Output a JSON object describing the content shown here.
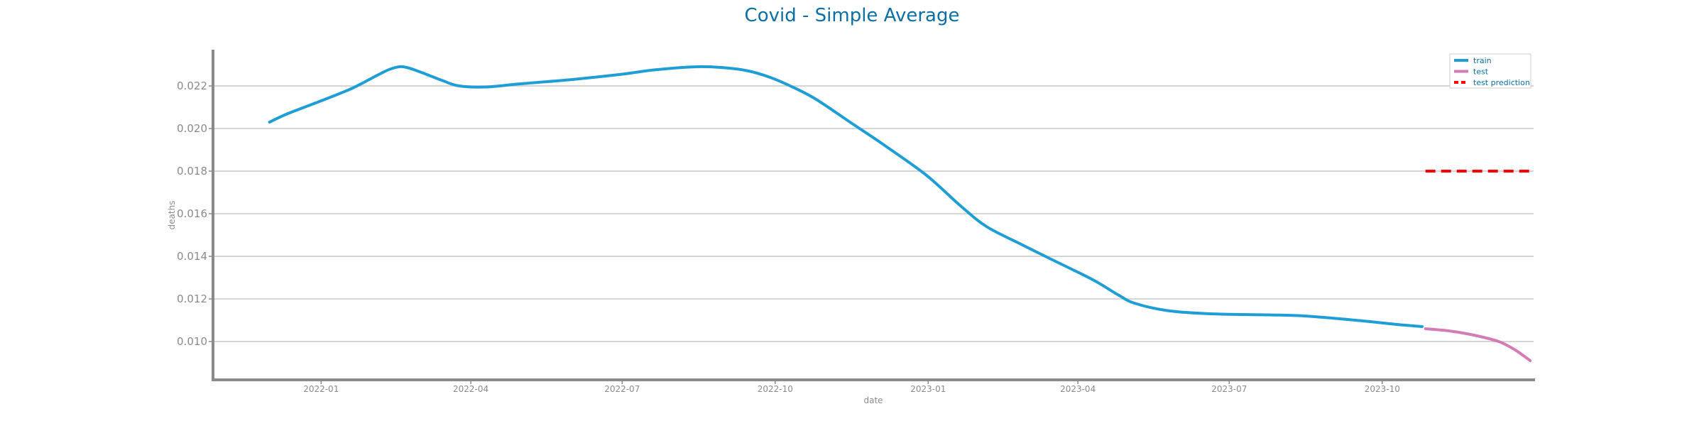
{
  "chart_data": {
    "type": "line",
    "title": "Covid - Simple Average",
    "xlabel": "date",
    "ylabel": "deaths",
    "xlim": [
      "2021-10-28",
      "2023-12-31"
    ],
    "ylim": [
      0.0082,
      0.0237
    ],
    "x_ticks": [
      "2022-01",
      "2022-04",
      "2022-07",
      "2022-10",
      "2023-01",
      "2023-04",
      "2023-07",
      "2023-10"
    ],
    "y_ticks": [
      "0.010",
      "0.012",
      "0.014",
      "0.016",
      "0.018",
      "0.020",
      "0.022"
    ],
    "grid": "horizontal",
    "legend_position": "top-right",
    "series": [
      {
        "name": "train",
        "color": "#1f9ed6",
        "style": "solid",
        "points": [
          [
            "2021-12-01",
            0.0203
          ],
          [
            "2021-12-12",
            0.0207
          ],
          [
            "2022-01-01",
            0.0213
          ],
          [
            "2022-01-20",
            0.0219
          ],
          [
            "2022-02-05",
            0.02255
          ],
          [
            "2022-02-12",
            0.0228
          ],
          [
            "2022-02-19",
            0.0229
          ],
          [
            "2022-02-28",
            0.0227
          ],
          [
            "2022-03-15",
            0.02225
          ],
          [
            "2022-03-25",
            0.022
          ],
          [
            "2022-04-10",
            0.02195
          ],
          [
            "2022-05-01",
            0.0221
          ],
          [
            "2022-06-01",
            0.0223
          ],
          [
            "2022-07-01",
            0.02255
          ],
          [
            "2022-07-20",
            0.02275
          ],
          [
            "2022-08-15",
            0.0229
          ],
          [
            "2022-09-01",
            0.02285
          ],
          [
            "2022-09-15",
            0.0227
          ],
          [
            "2022-09-28",
            0.0224
          ],
          [
            "2022-10-10",
            0.022
          ],
          [
            "2022-10-25",
            0.0214
          ],
          [
            "2022-11-15",
            0.0203
          ],
          [
            "2022-12-05",
            0.01925
          ],
          [
            "2022-12-31",
            0.0178
          ],
          [
            "2023-01-20",
            0.0164
          ],
          [
            "2023-02-05",
            0.0154
          ],
          [
            "2023-02-25",
            0.0146
          ],
          [
            "2023-03-15",
            0.0139
          ],
          [
            "2023-04-10",
            0.0129
          ],
          [
            "2023-04-25",
            0.0122
          ],
          [
            "2023-05-05",
            0.0118
          ],
          [
            "2023-05-25",
            0.01145
          ],
          [
            "2023-06-20",
            0.0113
          ],
          [
            "2023-07-25",
            0.01125
          ],
          [
            "2023-08-15",
            0.0112
          ],
          [
            "2023-09-15",
            0.011
          ],
          [
            "2023-10-10",
            0.0108
          ],
          [
            "2023-10-25",
            0.0107
          ]
        ]
      },
      {
        "name": "test",
        "color": "#d37bb5",
        "style": "solid",
        "points": [
          [
            "2023-10-27",
            0.0106
          ],
          [
            "2023-11-10",
            0.0105
          ],
          [
            "2023-11-25",
            0.0103
          ],
          [
            "2023-12-10",
            0.01
          ],
          [
            "2023-12-20",
            0.0096
          ],
          [
            "2023-12-29",
            0.0091
          ]
        ]
      },
      {
        "name": "test prediction",
        "color": "#ff0000",
        "style": "dashed",
        "points": [
          [
            "2023-10-27",
            0.018
          ],
          [
            "2023-12-29",
            0.018
          ]
        ]
      }
    ]
  }
}
